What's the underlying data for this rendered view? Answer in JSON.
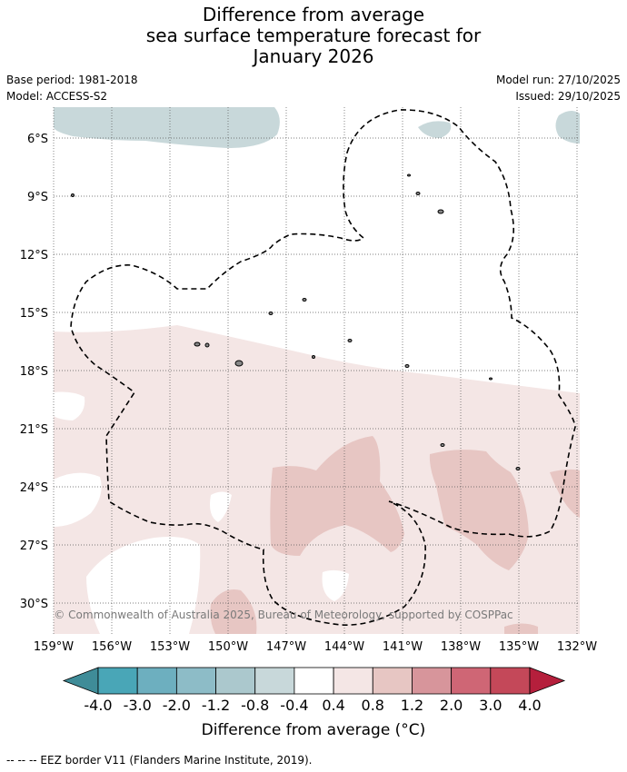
{
  "title": {
    "line1": "Difference from average",
    "line2": "sea surface temperature forecast for",
    "line3": "January 2026"
  },
  "meta": {
    "base_period": "Base period: 1981-2018",
    "model": "Model: ACCESS-S2",
    "model_run": "Model run: 27/10/2025",
    "issued": "Issued: 29/10/2025"
  },
  "map": {
    "lon_labels": [
      "159°W",
      "156°W",
      "153°W",
      "150°W",
      "147°W",
      "144°W",
      "141°W",
      "138°W",
      "135°W",
      "132°W"
    ],
    "lat_labels": [
      "6°S",
      "9°S",
      "12°S",
      "15°S",
      "18°S",
      "21°S",
      "24°S",
      "27°S",
      "30°S"
    ],
    "copyright": "© Commonwealth of Australia 2025, Bureau of Meteorology, supported by COSPPac"
  },
  "colorbar": {
    "labels": [
      "-4.0",
      "-3.0",
      "-2.0",
      "-1.2",
      "-0.8",
      "-0.4",
      "0.4",
      "0.8",
      "1.2",
      "2.0",
      "3.0",
      "4.0"
    ],
    "colors": [
      "#3f8c98",
      "#49a6b7",
      "#6dafbf",
      "#8dbcc7",
      "#abc8cd",
      "#c8d8da",
      "#ffffff",
      "#f4e6e5",
      "#e7c6c3",
      "#d7959b",
      "#cf6675",
      "#c44859",
      "#b51f3c"
    ],
    "title": "Difference from average (°C)"
  },
  "footer": "--  --  -- EEZ border V11 (Flanders Marine Institute, 2019)."
}
